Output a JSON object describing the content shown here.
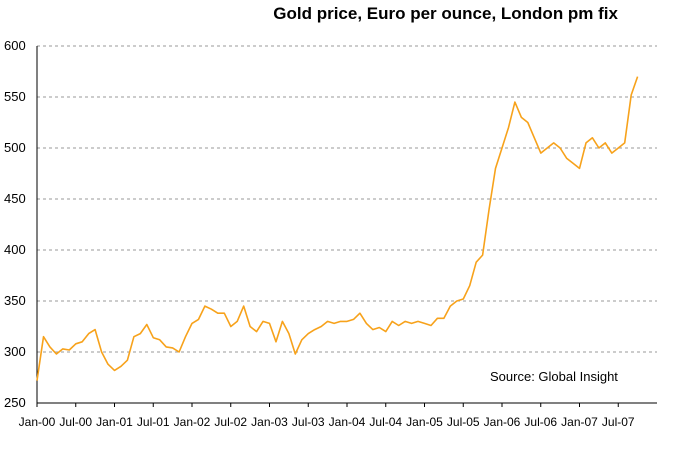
{
  "chart_data": {
    "type": "line",
    "title": "Gold price, Euro per ounce, London pm fix",
    "xlabel": "",
    "ylabel": "",
    "ylim": [
      250,
      600
    ],
    "yticks": [
      250,
      300,
      350,
      400,
      450,
      500,
      550,
      600
    ],
    "xticks": [
      "Jan-00",
      "Jul-00",
      "Jan-01",
      "Jul-01",
      "Jan-02",
      "Jul-02",
      "Jan-03",
      "Jul-03",
      "Jan-04",
      "Jul-04",
      "Jan-05",
      "Jul-05",
      "Jan-06",
      "Jul-06",
      "Jan-07",
      "Jul-07"
    ],
    "grid": "horizontal dashed",
    "line_color": "#F7A21B",
    "annotation": "Source: Global Insight",
    "series": [
      {
        "x": [
          "Jan-00",
          "Feb-00",
          "Mar-00",
          "Apr-00",
          "May-00",
          "Jun-00",
          "Jul-00",
          "Aug-00",
          "Sep-00",
          "Oct-00",
          "Nov-00",
          "Dec-00",
          "Jan-01",
          "Feb-01",
          "Mar-01",
          "Apr-01",
          "May-01",
          "Jun-01",
          "Jul-01",
          "Aug-01",
          "Sep-01",
          "Oct-01",
          "Nov-01",
          "Dec-01",
          "Jan-02",
          "Feb-02",
          "Mar-02",
          "Apr-02",
          "May-02",
          "Jun-02",
          "Jul-02",
          "Aug-02",
          "Sep-02",
          "Oct-02",
          "Nov-02",
          "Dec-02",
          "Jan-03",
          "Feb-03",
          "Mar-03",
          "Apr-03",
          "May-03",
          "Jun-03",
          "Jul-03",
          "Aug-03",
          "Sep-03",
          "Oct-03",
          "Nov-03",
          "Dec-03",
          "Jan-04",
          "Feb-04",
          "Mar-04",
          "Apr-04",
          "May-04",
          "Jun-04",
          "Jul-04",
          "Aug-04",
          "Sep-04",
          "Oct-04",
          "Nov-04",
          "Dec-04",
          "Jan-05",
          "Feb-05",
          "Mar-05",
          "Apr-05",
          "May-05",
          "Jun-05",
          "Jul-05",
          "Aug-05",
          "Sep-05",
          "Oct-05",
          "Nov-05",
          "Dec-05",
          "Jan-06",
          "Feb-06",
          "Mar-06",
          "Apr-06",
          "May-06",
          "Jun-06",
          "Jul-06",
          "Aug-06",
          "Sep-06",
          "Oct-06",
          "Nov-06",
          "Dec-06",
          "Jan-07",
          "Feb-07",
          "Mar-07",
          "Apr-07",
          "May-07",
          "Jun-07",
          "Jul-07",
          "Aug-07",
          "Sep-07",
          "Oct-07"
        ],
        "values": [
          272,
          315,
          305,
          298,
          303,
          302,
          308,
          310,
          318,
          322,
          300,
          288,
          282,
          286,
          292,
          315,
          318,
          327,
          314,
          312,
          305,
          304,
          300,
          315,
          328,
          332,
          345,
          342,
          338,
          338,
          325,
          330,
          345,
          325,
          320,
          330,
          328,
          310,
          330,
          318,
          298,
          312,
          318,
          322,
          325,
          330,
          328,
          330,
          330,
          332,
          338,
          328,
          322,
          324,
          320,
          330,
          326,
          330,
          328,
          330,
          328,
          326,
          333,
          333,
          345,
          350,
          352,
          365,
          388,
          395,
          440,
          480,
          500,
          520,
          545,
          530,
          525,
          510,
          495,
          500,
          505,
          500,
          490,
          485,
          480,
          505,
          510,
          500,
          505,
          495,
          500,
          505,
          552,
          570
        ]
      }
    ]
  }
}
